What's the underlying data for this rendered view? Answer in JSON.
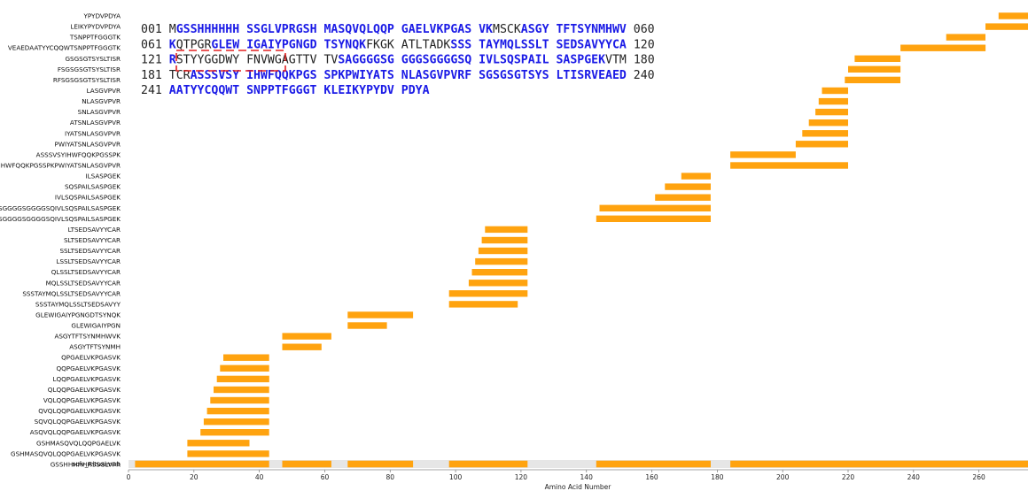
{
  "colors": {
    "bar": "#FFA30F",
    "coverage_track": "#E6E6E6",
    "covered_residue": "#1A1AE6",
    "uncovered_residue": "#222222",
    "annotation_box": "#E32020"
  },
  "chart_data": {
    "type": "bar",
    "orientation": "horizontal",
    "xlabel": "Amino Acid Number",
    "xlim": [
      0,
      275
    ],
    "xticks": [
      0,
      20,
      40,
      60,
      80,
      100,
      120,
      140,
      160,
      180,
      200,
      220,
      240,
      260
    ],
    "grid": false,
    "peptides": [
      {
        "label": "YPYDVPDYA",
        "start": 266,
        "end": 275
      },
      {
        "label": "LEIKYPYDVPDYA",
        "start": 262,
        "end": 275
      },
      {
        "label": "TSNPPTFGGGTK",
        "start": 250,
        "end": 262
      },
      {
        "label": "VEAEDAATYYCQQWTSNPPTFGGGTK",
        "start": 236,
        "end": 262
      },
      {
        "label": "GSGSGTSYSLTISR",
        "start": 222,
        "end": 236
      },
      {
        "label": "FSGSGSGTSYSLTISR",
        "start": 220,
        "end": 236
      },
      {
        "label": "RFSGSGSGTSYSLTISR",
        "start": 219,
        "end": 236
      },
      {
        "label": "LASGVPVR",
        "start": 212,
        "end": 220
      },
      {
        "label": "NLASGVPVR",
        "start": 211,
        "end": 220
      },
      {
        "label": "SNLASGVPVR",
        "start": 210,
        "end": 220
      },
      {
        "label": "ATSNLASGVPVR",
        "start": 208,
        "end": 220
      },
      {
        "label": "IYATSNLASGVPVR",
        "start": 206,
        "end": 220
      },
      {
        "label": "PWIYATSNLASGVPVR",
        "start": 204,
        "end": 220
      },
      {
        "label": "ASSSVSYIHWFQQKPGSSPK",
        "start": 184,
        "end": 204
      },
      {
        "label": "ASSSVSYIHWFQQKPGSSPKPWIYATSNLASGVPVR",
        "start": 184,
        "end": 220
      },
      {
        "label": "ILSASPGEK",
        "start": 169,
        "end": 178
      },
      {
        "label": "SQSPAILSASPGEK",
        "start": 164,
        "end": 178
      },
      {
        "label": "IVLSQSPAILSASPGEK",
        "start": 161,
        "end": 178
      },
      {
        "label": "GSGGGGSGGGGSQIVLSQSPAILSASPGEK",
        "start": 144,
        "end": 178
      },
      {
        "label": "GGSGGGGSGGGGSQIVLSQSPAILSASPGEK",
        "start": 143,
        "end": 178
      },
      {
        "label": "LTSEDSAVYYCAR",
        "start": 109,
        "end": 122
      },
      {
        "label": "SLTSEDSAVYYCAR",
        "start": 108,
        "end": 122
      },
      {
        "label": "SSLTSEDSAVYYCAR",
        "start": 107,
        "end": 122
      },
      {
        "label": "LSSLTSEDSAVYYCAR",
        "start": 106,
        "end": 122
      },
      {
        "label": "QLSSLTSEDSAVYYCAR",
        "start": 105,
        "end": 122
      },
      {
        "label": "MQLSSLTSEDSAVYYCAR",
        "start": 104,
        "end": 122
      },
      {
        "label": "SSSTAYMQLSSLTSEDSAVYYCAR",
        "start": 98,
        "end": 122
      },
      {
        "label": "SSSTAYMQLSSLTSEDSAVYY",
        "start": 98,
        "end": 119
      },
      {
        "label": "GLEWIGAIYPGNGDTSYNQK",
        "start": 67,
        "end": 87
      },
      {
        "label": "GLEWIGAIYPGN",
        "start": 67,
        "end": 79
      },
      {
        "label": "ASGYTFTSYNMHWVK",
        "start": 47,
        "end": 62
      },
      {
        "label": "ASGYTFTSYNMH",
        "start": 47,
        "end": 59
      },
      {
        "label": "QPGAELVKPGASVK",
        "start": 29,
        "end": 43
      },
      {
        "label": "QQPGAELVKPGASVK",
        "start": 28,
        "end": 43
      },
      {
        "label": "LQQPGAELVKPGASVK",
        "start": 27,
        "end": 43
      },
      {
        "label": "QLQQPGAELVKPGASVK",
        "start": 26,
        "end": 43
      },
      {
        "label": "VQLQQPGAELVKPGASVK",
        "start": 25,
        "end": 43
      },
      {
        "label": "QVQLQQPGAELVKPGASVK",
        "start": 24,
        "end": 43
      },
      {
        "label": "SQVQLQQPGAELVKPGASVK",
        "start": 23,
        "end": 43
      },
      {
        "label": "ASQVQLQQPGAELVKPGASVK",
        "start": 22,
        "end": 43
      },
      {
        "label": "GSHMASQVQLQQPGAELVK",
        "start": 18,
        "end": 37
      },
      {
        "label": "GSHMASQVQLQQPGAELVKPGASVK",
        "start": 18,
        "end": 43
      },
      {
        "label": "GSSHHHHHHSSGLVPR",
        "start": 2,
        "end": 18
      }
    ],
    "coverage": {
      "label": "scfv_Rituximab",
      "length": 275,
      "segments": [
        [
          2,
          43
        ],
        [
          47,
          62
        ],
        [
          67,
          87
        ],
        [
          98,
          122
        ],
        [
          143,
          178
        ],
        [
          184,
          275
        ]
      ]
    },
    "sequence": {
      "lines": [
        {
          "start": "001",
          "end": "060",
          "segments": [
            {
              "text": "M",
              "covered": false
            },
            {
              "text": "GSSHHHHHH SSGLVPRGSH MASQVQLQQP GAELVKPGAS VK",
              "covered": true
            },
            {
              "text": "MSCK",
              "covered": false
            },
            {
              "text": "ASGY TFTSYNMHWV",
              "covered": true
            }
          ]
        },
        {
          "start": "061",
          "end": "120",
          "segments": [
            {
              "text": "K",
              "covered": true
            },
            {
              "text": "QTPGR",
              "covered": false
            },
            {
              "text": "GLEW IGAIYPGNGD TSYNQK",
              "covered": true
            },
            {
              "text": "FKGK ATLTADK",
              "covered": false
            },
            {
              "text": "SSS TAYMQLSSLT SEDSAVYYCA",
              "covered": true
            }
          ]
        },
        {
          "start": "121",
          "end": "180",
          "segments": [
            {
              "text": "R",
              "covered": true
            },
            {
              "text": "STYYGGDWY FNVWGAGTTV TV",
              "covered": false
            },
            {
              "text": "SAGGGGSG GGGSGGGGSQ IVLSQSPAIL SASPGEK",
              "covered": true
            },
            {
              "text": "VTM",
              "covered": false
            }
          ]
        },
        {
          "start": "181",
          "end": "240",
          "segments": [
            {
              "text": "TCR",
              "covered": false
            },
            {
              "text": "ASSSVSY IHWFQQKPGS SPKPWIYATS NLASGVPVRF SGSGSGTSYS LTISRVEAED",
              "covered": true
            }
          ]
        },
        {
          "start": "241",
          "end": "",
          "segments": [
            {
              "text": "AATYYCQQWT SNPPTFGGGT KLEIKYPYDV PDYA",
              "covered": true
            }
          ]
        }
      ]
    }
  }
}
